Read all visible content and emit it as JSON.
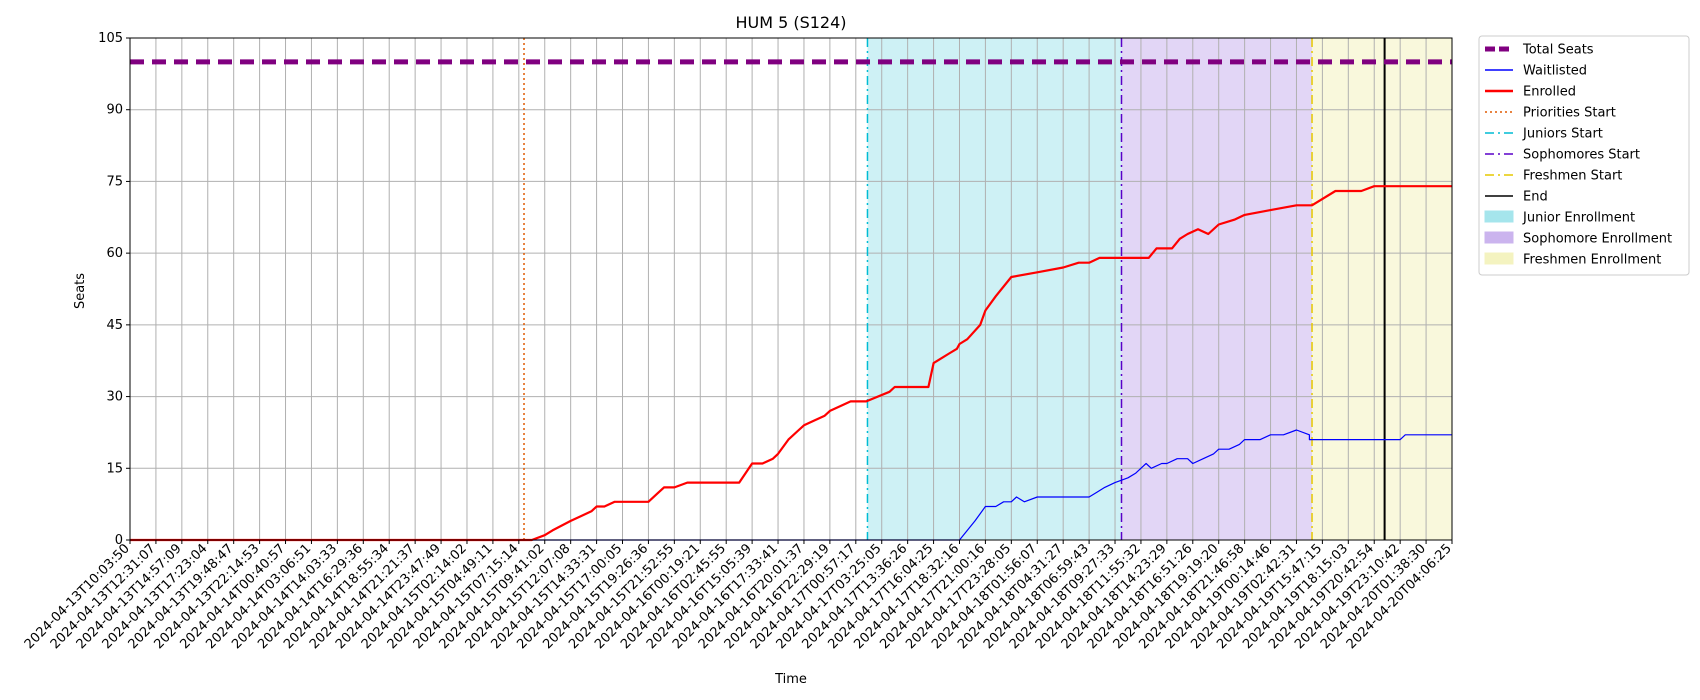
{
  "chart_data": {
    "type": "line",
    "title": "HUM 5 (S124)",
    "xlabel": "Time",
    "ylabel": "Seats",
    "ylim": [
      0,
      105
    ],
    "yticks": [
      0,
      15,
      30,
      45,
      60,
      75,
      90,
      105
    ],
    "x_ticks": [
      "2024-04-13T10:03:50",
      "2024-04-13T12:31:07",
      "2024-04-13T14:57:09",
      "2024-04-13T17:23:04",
      "2024-04-13T19:48:47",
      "2024-04-13T22:14:53",
      "2024-04-14T00:40:57",
      "2024-04-14T03:06:51",
      "2024-04-14T14:03:33",
      "2024-04-14T16:29:36",
      "2024-04-14T18:55:34",
      "2024-04-14T21:21:37",
      "2024-04-14T23:47:49",
      "2024-04-15T02:14:02",
      "2024-04-15T04:49:11",
      "2024-04-15T07:15:14",
      "2024-04-15T09:41:02",
      "2024-04-15T12:07:08",
      "2024-04-15T14:33:31",
      "2024-04-15T17:00:05",
      "2024-04-15T19:26:36",
      "2024-04-15T21:52:55",
      "2024-04-16T00:19:21",
      "2024-04-16T02:45:55",
      "2024-04-16T15:05:39",
      "2024-04-16T17:33:41",
      "2024-04-16T20:01:37",
      "2024-04-16T22:29:19",
      "2024-04-17T00:57:17",
      "2024-04-17T03:25:05",
      "2024-04-17T13:36:26",
      "2024-04-17T16:04:25",
      "2024-04-17T18:32:16",
      "2024-04-17T21:00:16",
      "2024-04-17T23:28:05",
      "2024-04-18T01:56:07",
      "2024-04-18T04:31:27",
      "2024-04-18T06:59:43",
      "2024-04-18T09:27:33",
      "2024-04-18T11:55:32",
      "2024-04-18T14:23:29",
      "2024-04-18T16:51:26",
      "2024-04-18T19:19:20",
      "2024-04-18T21:46:58",
      "2024-04-19T00:14:46",
      "2024-04-19T02:42:31",
      "2024-04-19T15:47:15",
      "2024-04-19T18:15:03",
      "2024-04-19T20:42:54",
      "2024-04-19T23:10:42",
      "2024-04-20T01:38:30",
      "2024-04-20T04:06:25"
    ],
    "x_tick_positions": [
      0,
      1,
      2,
      3,
      4,
      5,
      6,
      7,
      8,
      9,
      10,
      11,
      12,
      13,
      14,
      15,
      16,
      17,
      18,
      19,
      20,
      21,
      22,
      23,
      24,
      25,
      26,
      27,
      28,
      29,
      30,
      31,
      32,
      33,
      34,
      35,
      36,
      37,
      38,
      39,
      40,
      41,
      42,
      43,
      44,
      45,
      46,
      47,
      48,
      49,
      50,
      51
    ],
    "xlim": [
      0,
      51
    ],
    "total_seats": 100,
    "series": [
      {
        "name": "Total Seats",
        "color": "#800080",
        "style": "dashed",
        "x": [
          0,
          51
        ],
        "values": [
          100,
          100
        ]
      },
      {
        "name": "Waitlisted",
        "color": "#0000ff",
        "style": "solid",
        "x": [
          0,
          32.0,
          32.3,
          32.6,
          33.0,
          33.4,
          33.7,
          34.0,
          34.2,
          34.5,
          35.0,
          37.0,
          37.3,
          37.6,
          38.0,
          38.5,
          38.8,
          39.0,
          39.2,
          39.4,
          39.8,
          40.0,
          40.4,
          40.8,
          41.0,
          41.4,
          41.8,
          42.0,
          42.4,
          42.8,
          43.0,
          43.6,
          44.0,
          44.5,
          45.0,
          45.5,
          45.5,
          46.5,
          47.0,
          48.0,
          49.0,
          49.2,
          50.0,
          51
        ],
        "values": [
          0,
          0,
          2,
          4,
          7,
          7,
          8,
          8,
          9,
          8,
          9,
          9,
          10,
          11,
          12,
          13,
          14,
          15,
          16,
          15,
          16,
          16,
          17,
          17,
          16,
          17,
          18,
          19,
          19,
          20,
          21,
          21,
          22,
          22,
          23,
          22,
          21,
          21,
          21,
          21,
          21,
          22,
          22,
          22
        ]
      },
      {
        "name": "Enrolled",
        "color": "#ff0000",
        "style": "solid",
        "x": [
          0,
          15.5,
          16.0,
          16.3,
          17.0,
          17.4,
          17.8,
          18.0,
          18.3,
          18.7,
          19.0,
          19.4,
          20.0,
          20.4,
          20.6,
          21.0,
          21.5,
          22.0,
          23.5,
          24.0,
          24.4,
          24.8,
          25.0,
          25.4,
          25.8,
          26.0,
          26.4,
          26.8,
          27.0,
          27.4,
          27.8,
          28.0,
          28.4,
          29.3,
          29.5,
          29.8,
          30.0,
          30.2,
          30.5,
          30.8,
          31.0,
          31.3,
          31.6,
          31.9,
          32.0,
          32.3,
          32.8,
          33.0,
          33.4,
          34.0,
          35.0,
          36.0,
          36.6,
          37.0,
          37.4,
          37.8,
          38.0,
          38.4,
          38.7,
          39.0,
          39.3,
          39.6,
          39.9,
          40.2,
          40.5,
          40.8,
          41.2,
          41.6,
          42.0,
          42.6,
          43.0,
          44.0,
          45.0,
          45.5,
          45.6,
          46.5,
          47.0,
          47.5,
          48.0,
          49.0,
          50.0,
          51
        ],
        "values": [
          0,
          0,
          1,
          2,
          4,
          5,
          6,
          7,
          7,
          8,
          8,
          8,
          8,
          10,
          11,
          11,
          12,
          12,
          12,
          16,
          16,
          17,
          18,
          21,
          23,
          24,
          25,
          26,
          27,
          28,
          29,
          29,
          29,
          31,
          32,
          32,
          32,
          32,
          32,
          32,
          37,
          38,
          39,
          40,
          41,
          42,
          45,
          48,
          51,
          55,
          56,
          57,
          58,
          58,
          59,
          59,
          59,
          59,
          59,
          59,
          59,
          61,
          61,
          61,
          63,
          64,
          65,
          64,
          66,
          67,
          68,
          69,
          70,
          70,
          70,
          73,
          73,
          73,
          74,
          74,
          74,
          74
        ]
      }
    ],
    "vertical_lines": [
      {
        "name": "Priorities Start",
        "color": "#e05a00",
        "style": "dotted",
        "x": 15.2
      },
      {
        "name": "Juniors Start",
        "color": "#00bcd4",
        "style": "dashdot",
        "x": 28.45
      },
      {
        "name": "Sophomores Start",
        "color": "#5a00c8",
        "style": "dashdot",
        "x": 38.25
      },
      {
        "name": "Freshmen Start",
        "color": "#e6c800",
        "style": "dashdot",
        "x": 45.6
      },
      {
        "name": "End",
        "color": "#000000",
        "style": "solid",
        "x": 48.4
      }
    ],
    "spans": [
      {
        "name": "Junior Enrollment",
        "color": "#a5e5ec",
        "x0": 28.45,
        "x1": 38.25
      },
      {
        "name": "Sophomore Enrollment",
        "color": "#cbb4ee",
        "x0": 38.25,
        "x1": 45.6
      },
      {
        "name": "Freshmen Enrollment",
        "color": "#f4f3c0",
        "x0": 45.6,
        "x1": 51
      }
    ],
    "legend": {
      "placement": "outside-right-top",
      "entries": [
        {
          "label": "Total Seats",
          "kind": "line",
          "color": "#800080",
          "style": "thickdash"
        },
        {
          "label": "Waitlisted",
          "kind": "line",
          "color": "#0000ff",
          "style": "solid"
        },
        {
          "label": "Enrolled",
          "kind": "line",
          "color": "#ff0000",
          "style": "thick"
        },
        {
          "label": "Priorities Start",
          "kind": "line",
          "color": "#e05a00",
          "style": "dotted"
        },
        {
          "label": "Juniors Start",
          "kind": "line",
          "color": "#00bcd4",
          "style": "dashdot"
        },
        {
          "label": "Sophomores Start",
          "kind": "line",
          "color": "#5a00c8",
          "style": "dashdot"
        },
        {
          "label": "Freshmen Start",
          "kind": "line",
          "color": "#e6c800",
          "style": "dashdot"
        },
        {
          "label": "End",
          "kind": "line",
          "color": "#000000",
          "style": "solid"
        },
        {
          "label": "Junior Enrollment",
          "kind": "patch",
          "color": "#a5e5ec"
        },
        {
          "label": "Sophomore Enrollment",
          "kind": "patch",
          "color": "#cbb4ee"
        },
        {
          "label": "Freshmen Enrollment",
          "kind": "patch",
          "color": "#f4f3c0"
        }
      ]
    },
    "grid": true
  }
}
